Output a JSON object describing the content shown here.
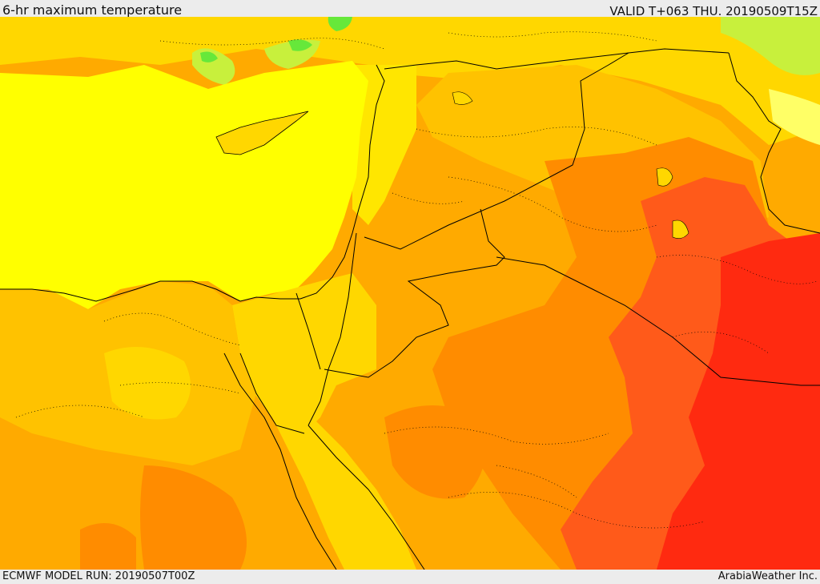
{
  "header": {
    "title": "6-hr maximum temperature",
    "valid": "VALID T+063 THU. 20190509T15Z"
  },
  "footer": {
    "model_run": "ECMWF MODEL RUN: 20190507T00Z",
    "credit": "ArabiaWeather Inc."
  },
  "map": {
    "palette": {
      "green": "#66e83a",
      "light_green": "#c8f03c",
      "yellow": "#ffff00",
      "gold": "#ffd700",
      "light_orange": "#ffc200",
      "orange": "#ffaa00",
      "dark_orange": "#ff8c00",
      "red_orange": "#ff5a1a",
      "red": "#ff2a10",
      "border_color": "#000000"
    }
  }
}
